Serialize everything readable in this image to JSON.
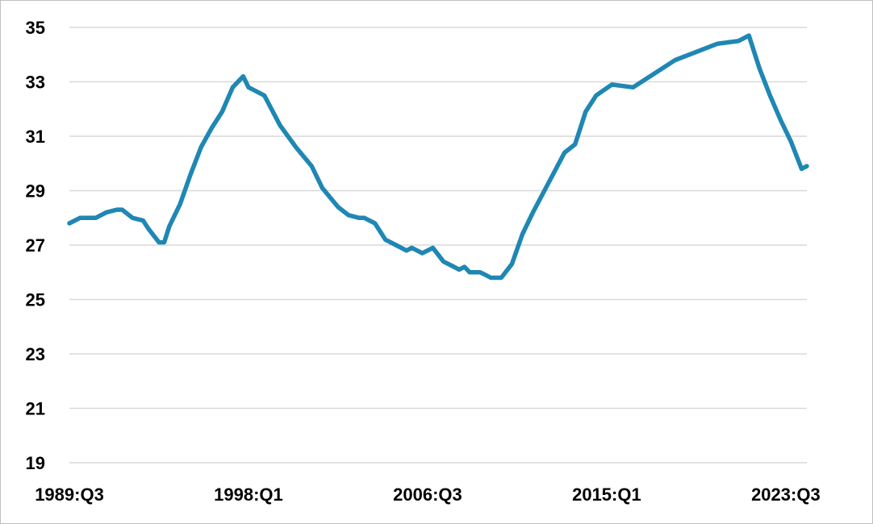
{
  "chart_data": {
    "type": "line",
    "title": "",
    "xlabel": "",
    "ylabel": "",
    "ylim": [
      19,
      35
    ],
    "y_ticks": [
      19,
      21,
      23,
      25,
      27,
      29,
      31,
      33,
      35
    ],
    "x_tick_labels": [
      "1989:Q3",
      "1998:Q1",
      "2006:Q3",
      "2015:Q1",
      "2023:Q3"
    ],
    "x_range": [
      "1989:Q3",
      "2024:Q3"
    ],
    "grid": "horizontal",
    "line_color": "#1f87b3",
    "series": [
      {
        "x": [
          "1989:Q3",
          "1990:Q1",
          "1990:Q4",
          "1991:Q2",
          "1991:Q4",
          "1992:Q1",
          "1992:Q3",
          "1993:Q1",
          "1993:Q2",
          "1993:Q4",
          "1994:Q1",
          "1994:Q2",
          "1994:Q4",
          "1995:Q2",
          "1995:Q4",
          "1996:Q2",
          "1996:Q4",
          "1997:Q2",
          "1997:Q4",
          "1998:Q1",
          "1998:Q4",
          "1999:Q3",
          "2000:Q2",
          "2001:Q1",
          "2001:Q3",
          "2002:Q2",
          "2002:Q4",
          "2003:Q2",
          "2003:Q3",
          "2004:Q1",
          "2004:Q3",
          "2005:Q1",
          "2005:Q2",
          "2005:Q3",
          "2005:Q4",
          "2006:Q2",
          "2006:Q4",
          "2007:Q2",
          "2007:Q4",
          "2008:Q1",
          "2008:Q2",
          "2008:Q3",
          "2009:Q1",
          "2009:Q2",
          "2009:Q3",
          "2010:Q1",
          "2010:Q3",
          "2011:Q1",
          "2011:Q3",
          "2012:Q2",
          "2013:Q1",
          "2013:Q3",
          "2013:Q4",
          "2014:Q1",
          "2014:Q3",
          "2015:Q2",
          "2016:Q2",
          "2017:Q2",
          "2018:Q2",
          "2019:Q2",
          "2020:Q2",
          "2021:Q2",
          "2021:Q4",
          "2022:Q2",
          "2022:Q4",
          "2023:Q2",
          "2023:Q4",
          "2024:Q2",
          "2024:Q3"
        ],
        "values": [
          27.8,
          28.0,
          28.0,
          28.2,
          28.3,
          28.3,
          28.0,
          27.9,
          27.6,
          27.1,
          27.1,
          27.7,
          28.5,
          29.6,
          30.6,
          31.3,
          31.9,
          32.8,
          33.2,
          32.8,
          32.5,
          31.4,
          30.6,
          29.9,
          29.1,
          28.4,
          28.1,
          28.0,
          28.0,
          27.8,
          27.2,
          27.0,
          26.9,
          26.8,
          26.9,
          26.7,
          26.9,
          26.4,
          26.2,
          26.1,
          26.2,
          26.0,
          26.0,
          25.9,
          25.8,
          25.8,
          26.3,
          27.4,
          28.2,
          29.3,
          30.4,
          30.7,
          31.3,
          31.9,
          32.5,
          32.9,
          32.8,
          33.3,
          33.8,
          34.1,
          34.4,
          34.5,
          34.7,
          33.5,
          32.5,
          31.6,
          30.8,
          29.8,
          29.9
        ]
      }
    ]
  }
}
